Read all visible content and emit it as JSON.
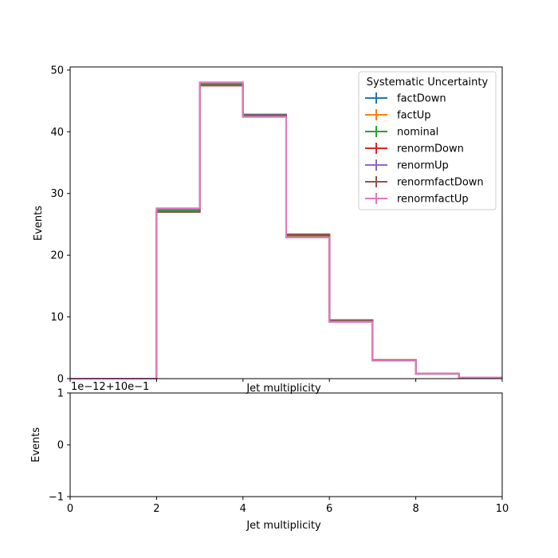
{
  "chart_data": [
    {
      "type": "line",
      "drawstyle": "steps",
      "xlabel": "Jet multiplicity",
      "ylabel": "Events",
      "xlim": [
        0,
        10
      ],
      "ylim": [
        0,
        50.5
      ],
      "x_ticks": [
        0,
        2,
        4,
        6,
        8,
        10
      ],
      "y_ticks": [
        0,
        10,
        20,
        30,
        40,
        50
      ],
      "x_tick_labels_shown": false,
      "bin_edges": [
        0,
        1,
        2,
        3,
        4,
        5,
        6,
        7,
        8,
        9,
        10
      ],
      "grid": false,
      "legend": {
        "title": "Systematic Uncertainty",
        "loc": "upper right"
      },
      "series": [
        {
          "name": "factDown",
          "color": "#1f77b4",
          "values": [
            0,
            0,
            27.3,
            47.7,
            42.8,
            23.3,
            9.4,
            3.0,
            0.8,
            0.2
          ]
        },
        {
          "name": "factUp",
          "color": "#ff7f0e",
          "values": [
            0,
            0,
            27.1,
            47.5,
            42.5,
            23.0,
            9.3,
            3.0,
            0.8,
            0.2
          ]
        },
        {
          "name": "nominal",
          "color": "#2ca02c",
          "values": [
            0,
            0,
            27.2,
            47.8,
            42.6,
            23.2,
            9.4,
            3.0,
            0.8,
            0.2
          ]
        },
        {
          "name": "renormDown",
          "color": "#d62728",
          "values": [
            0,
            0,
            27.0,
            47.5,
            42.6,
            23.3,
            9.5,
            3.0,
            0.8,
            0.2
          ]
        },
        {
          "name": "renormUp",
          "color": "#9467bd",
          "values": [
            0,
            0,
            27.5,
            48.0,
            42.5,
            22.9,
            9.2,
            2.9,
            0.8,
            0.2
          ]
        },
        {
          "name": "renormfactDown",
          "color": "#8c564b",
          "values": [
            0,
            0,
            27.0,
            47.5,
            42.7,
            23.4,
            9.5,
            3.0,
            0.8,
            0.2
          ]
        },
        {
          "name": "renormfactUp",
          "color": "#e377c2",
          "values": [
            0,
            0,
            27.6,
            48.0,
            42.4,
            22.9,
            9.2,
            2.9,
            0.8,
            0.2
          ]
        }
      ]
    },
    {
      "type": "line",
      "xlabel": "Jet multiplicity",
      "ylabel": "Events",
      "xlim": [
        0,
        10
      ],
      "ylim": [
        -1,
        1
      ],
      "x_ticks": [
        0,
        2,
        4,
        6,
        8,
        10
      ],
      "y_ticks": [
        -1,
        0,
        1
      ],
      "offset_text": "1e−12+10e−1",
      "grid": false,
      "series": []
    }
  ]
}
